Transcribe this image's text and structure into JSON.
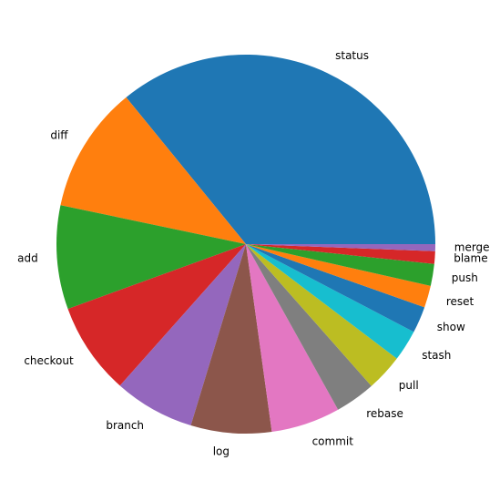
{
  "chart_data": {
    "type": "pie",
    "title": "",
    "categories": [
      "status",
      "diff",
      "add",
      "checkout",
      "branch",
      "log",
      "commit",
      "rebase",
      "pull",
      "stash",
      "show",
      "reset",
      "push",
      "blame",
      "merge"
    ],
    "values": [
      36.5,
      11.0,
      9.0,
      8.0,
      7.0,
      7.0,
      6.0,
      3.5,
      3.2,
      2.7,
      2.3,
      1.9,
      1.9,
      1.1,
      0.6
    ],
    "colors": [
      "#1f77b4",
      "#ff7f0e",
      "#2ca02c",
      "#d62728",
      "#9467bd",
      "#8c564b",
      "#e377c2",
      "#7f7f7f",
      "#bcbd22",
      "#17becf",
      "#1f77b4",
      "#ff7f0e",
      "#2ca02c",
      "#d62728",
      "#9467bd"
    ],
    "start_angle": 0,
    "direction": "counterclockwise",
    "legend": "none"
  }
}
